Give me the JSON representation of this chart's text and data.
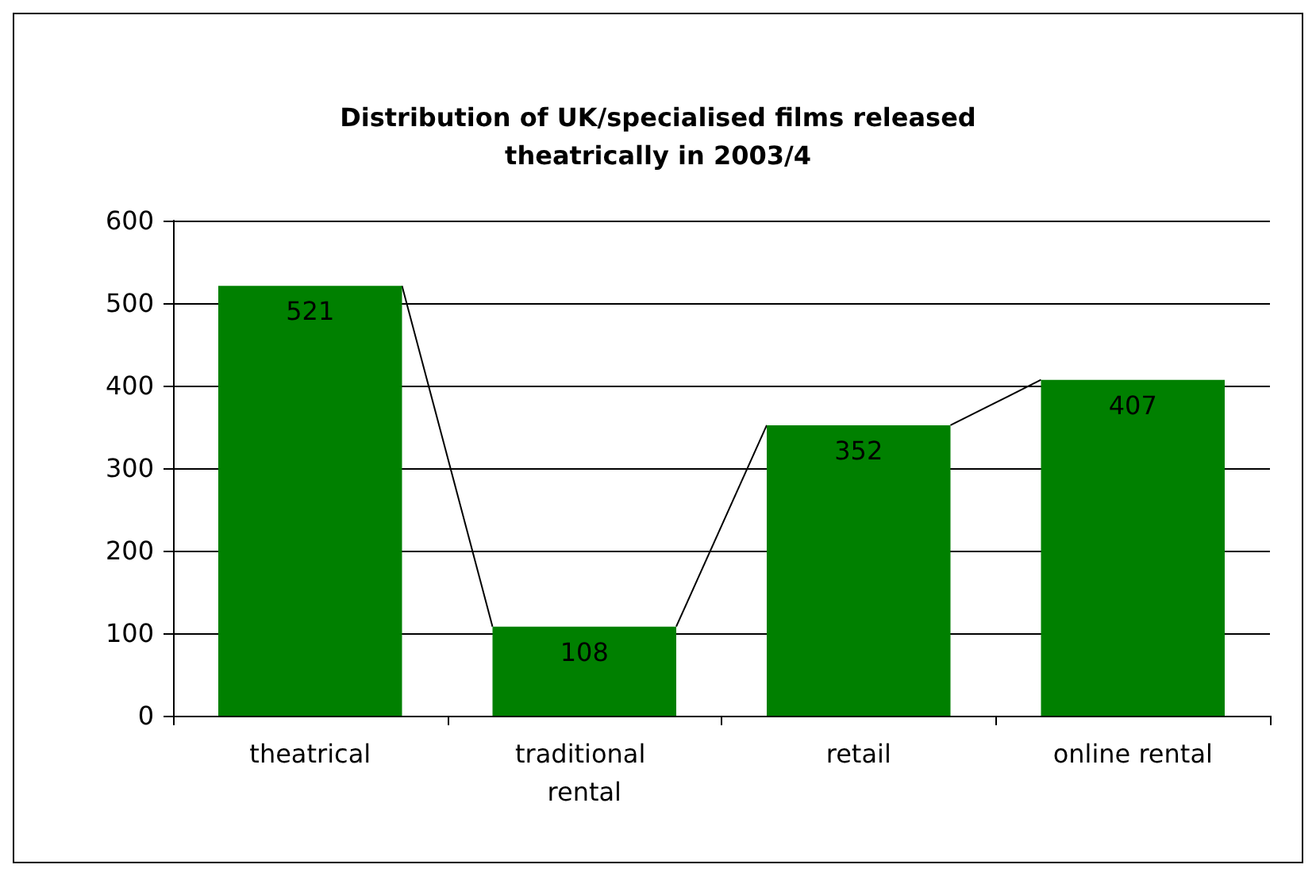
{
  "chart_data": {
    "type": "bar",
    "title": "Distribution of UK/specialised films released\ntheatrically in 2003/4",
    "categories": [
      "theatrical",
      "traditional rental",
      "retail",
      "online rental"
    ],
    "values": [
      521,
      108,
      352,
      407
    ],
    "color": "#008000",
    "ylim": [
      0,
      600
    ],
    "yticks": [
      0,
      100,
      200,
      300,
      400,
      500,
      600
    ],
    "grid": "y",
    "data_labels": true
  }
}
